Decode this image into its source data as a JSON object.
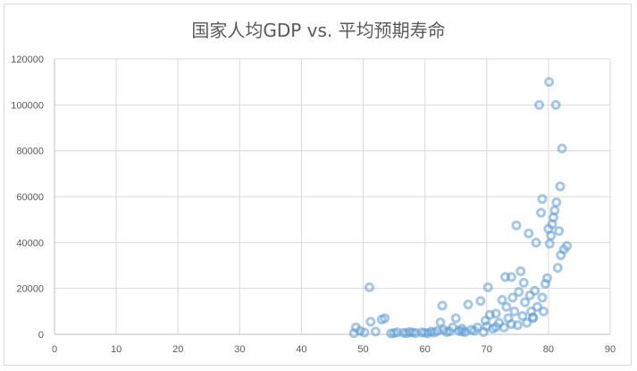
{
  "chart_data": {
    "type": "scatter",
    "title": "国家人均GDP vs. 平均预期寿命",
    "xlabel": "",
    "ylabel": "",
    "xlim": [
      0,
      90
    ],
    "ylim": [
      0,
      120000
    ],
    "x_ticks": [
      0,
      10,
      20,
      30,
      40,
      50,
      60,
      70,
      80,
      90
    ],
    "y_ticks": [
      0,
      20000,
      40000,
      60000,
      80000,
      100000,
      120000
    ],
    "grid": true,
    "marker_color": "#5b9bd5",
    "points": [
      [
        48.5,
        500
      ],
      [
        48.8,
        3000
      ],
      [
        49.5,
        1500
      ],
      [
        50.2,
        800
      ],
      [
        51.0,
        20500
      ],
      [
        51.2,
        5500
      ],
      [
        52.0,
        1200
      ],
      [
        53.0,
        6500
      ],
      [
        53.5,
        7000
      ],
      [
        54.5,
        400
      ],
      [
        55.0,
        600
      ],
      [
        55.5,
        900
      ],
      [
        56.5,
        700
      ],
      [
        57.0,
        500
      ],
      [
        57.5,
        1000
      ],
      [
        58.0,
        800
      ],
      [
        58.5,
        600
      ],
      [
        59.5,
        900
      ],
      [
        60.0,
        700
      ],
      [
        61.0,
        1200
      ],
      [
        61.5,
        800
      ],
      [
        62.0,
        1500
      ],
      [
        62.5,
        5200
      ],
      [
        62.8,
        12500
      ],
      [
        63.0,
        2000
      ],
      [
        63.5,
        1000
      ],
      [
        64.0,
        1300
      ],
      [
        64.5,
        3000
      ],
      [
        65.0,
        7000
      ],
      [
        65.5,
        1500
      ],
      [
        66.0,
        2500
      ],
      [
        66.5,
        1000
      ],
      [
        67.0,
        13000
      ],
      [
        67.5,
        2000
      ],
      [
        68.0,
        1500
      ],
      [
        68.5,
        3000
      ],
      [
        69.0,
        14500
      ],
      [
        69.5,
        1000
      ],
      [
        69.8,
        6000
      ],
      [
        70.0,
        3500
      ],
      [
        70.2,
        20500
      ],
      [
        70.5,
        8500
      ],
      [
        71.0,
        2500
      ],
      [
        71.5,
        9000
      ],
      [
        72.0,
        5000
      ],
      [
        72.5,
        15000
      ],
      [
        72.8,
        3000
      ],
      [
        73.0,
        25000
      ],
      [
        73.2,
        12000
      ],
      [
        73.5,
        7000
      ],
      [
        74.0,
        25000
      ],
      [
        74.2,
        16000
      ],
      [
        74.5,
        10000
      ],
      [
        74.8,
        47500
      ],
      [
        75.0,
        4000
      ],
      [
        75.2,
        18500
      ],
      [
        75.5,
        27500
      ],
      [
        75.8,
        8000
      ],
      [
        76.0,
        22500
      ],
      [
        76.2,
        14000
      ],
      [
        76.5,
        5000
      ],
      [
        76.8,
        44000
      ],
      [
        77.0,
        17000
      ],
      [
        77.2,
        10000
      ],
      [
        77.5,
        7000
      ],
      [
        77.8,
        19000
      ],
      [
        78.0,
        40000
      ],
      [
        78.2,
        12000
      ],
      [
        78.5,
        100000
      ],
      [
        78.8,
        53000
      ],
      [
        79.0,
        59000
      ],
      [
        79.2,
        10000
      ],
      [
        79.5,
        22000
      ],
      [
        79.8,
        24500
      ],
      [
        80.0,
        46000
      ],
      [
        80.1,
        110000
      ],
      [
        80.2,
        39500
      ],
      [
        80.4,
        43000
      ],
      [
        80.6,
        48000
      ],
      [
        80.8,
        51000
      ],
      [
        81.0,
        54000
      ],
      [
        81.2,
        100000
      ],
      [
        81.3,
        57500
      ],
      [
        81.5,
        29000
      ],
      [
        81.7,
        45000
      ],
      [
        81.9,
        64500
      ],
      [
        82.0,
        34500
      ],
      [
        82.2,
        81000
      ],
      [
        82.5,
        37000
      ],
      [
        83.0,
        38500
      ],
      [
        79.0,
        16000
      ],
      [
        77.5,
        7500
      ],
      [
        74.0,
        4500
      ],
      [
        71.5,
        3200
      ],
      [
        66.0,
        1200
      ],
      [
        60.5,
        500
      ]
    ]
  }
}
